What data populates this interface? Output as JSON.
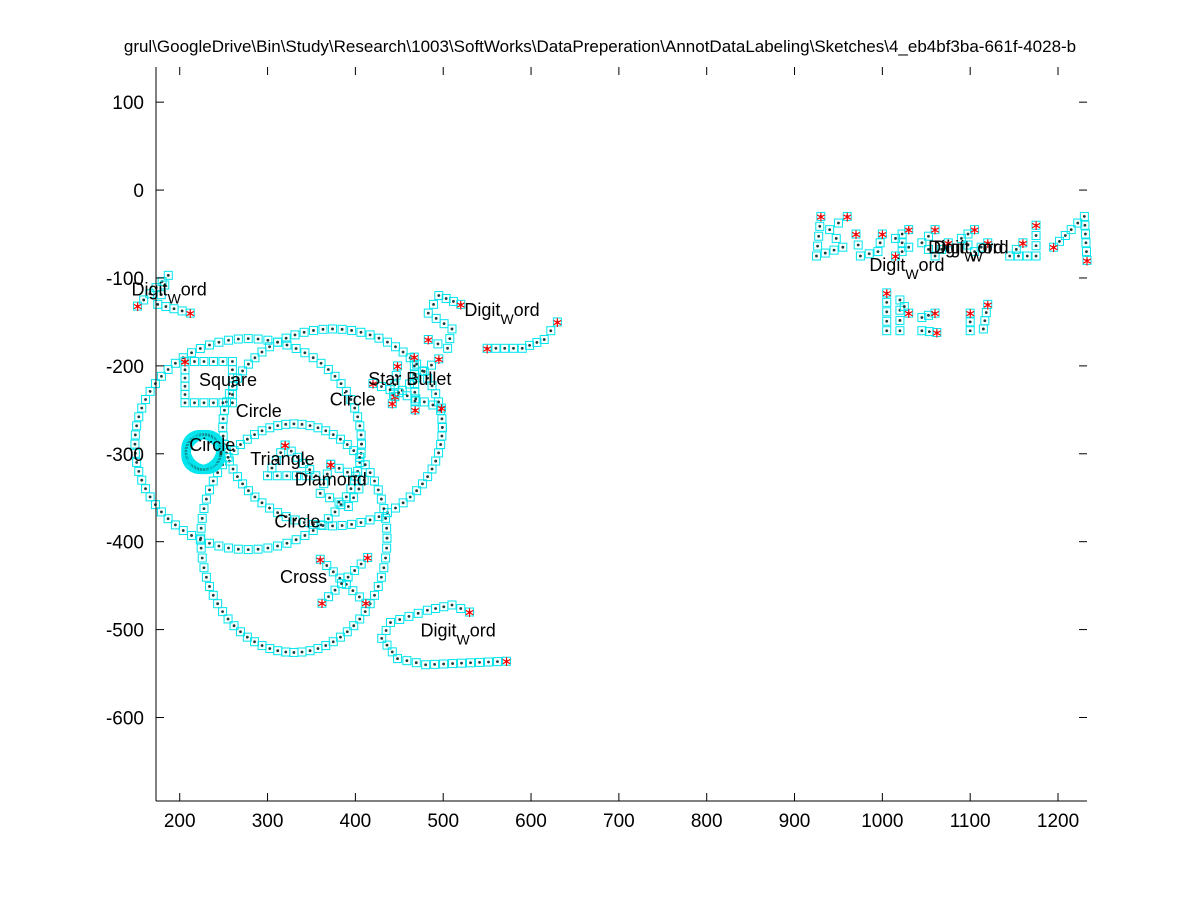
{
  "chart_data": {
    "type": "scatter",
    "title": "grul\\GoogleDrive\\Bin\\Study\\Research\\1003\\SoftWorks\\DataPreperation\\AnnotDataLabeling\\Sketches\\4_eb4bf3ba-661f-4028-b",
    "xlabel": "",
    "ylabel": "",
    "xlim": [
      173,
      1233
    ],
    "ylim": [
      -695,
      140
    ],
    "grid": false,
    "xticks": [
      200,
      300,
      400,
      500,
      600,
      700,
      800,
      900,
      1000,
      1100,
      1200
    ],
    "yticks": [
      100,
      0,
      -100,
      -200,
      -300,
      -400,
      -500,
      -600
    ],
    "xtick_labels": [
      "200",
      "300",
      "400",
      "500",
      "600",
      "700",
      "800",
      "900",
      "1000",
      "1100",
      "1200"
    ],
    "ytick_labels": [
      "100",
      "0",
      "-100",
      "-200",
      "-300",
      "-400",
      "-500",
      "-600"
    ],
    "colors": {
      "stroke": "#00e5ee",
      "point": "#1a3c3c",
      "endpoint": "#ff0000"
    },
    "annotations": [
      {
        "text": "Digit",
        "sub": "word",
        "x": 188,
        "y": -120
      },
      {
        "text": "Digit",
        "sub": "word",
        "x": 567,
        "y": -143
      },
      {
        "text": "Digit",
        "sub": "word",
        "x": 517,
        "y": -508
      },
      {
        "text": "Square",
        "x": 255,
        "y": -223
      },
      {
        "text": "Circle",
        "x": 290,
        "y": -258
      },
      {
        "text": "Circle",
        "x": 237,
        "y": -297
      },
      {
        "text": "Star Bullet",
        "x": 462,
        "y": -222
      },
      {
        "text": "Circle",
        "x": 397,
        "y": -245
      },
      {
        "text": "Triangle",
        "x": 317,
        "y": -313
      },
      {
        "text": "Diamond",
        "x": 372,
        "y": -336
      },
      {
        "text": "Circle",
        "x": 334,
        "y": -384
      },
      {
        "text": "Cross",
        "x": 341,
        "y": -447
      },
      {
        "text": "Digit",
        "sub": "word",
        "x": 1095,
        "y": -72
      },
      {
        "text": "Digit",
        "sub": "word",
        "x": 1101,
        "y": -72
      },
      {
        "text": "Digit",
        "sub": "word",
        "x": 1028,
        "y": -92
      }
    ],
    "series": [
      {
        "kind": "circle",
        "cx": 278,
        "cy": -289,
        "rx": 129,
        "ry": 120
      },
      {
        "kind": "circle",
        "cx": 374,
        "cy": -270,
        "rx": 125,
        "ry": 112
      },
      {
        "kind": "circle",
        "cx": 330,
        "cy": -396,
        "rx": 106,
        "ry": 130
      },
      {
        "kind": "poly",
        "points": [
          [
            206,
            -195
          ],
          [
            260,
            -195
          ],
          [
            260,
            -242
          ],
          [
            206,
            -242
          ],
          [
            206,
            -195
          ]
        ]
      },
      {
        "kind": "circle",
        "cx": 227,
        "cy": -298,
        "rx": 20,
        "ry": 20
      },
      {
        "kind": "poly",
        "points": [
          [
            320,
            -290
          ],
          [
            355,
            -325
          ],
          [
            300,
            -325
          ],
          [
            320,
            -290
          ]
        ]
      },
      {
        "kind": "poly",
        "points": [
          [
            372,
            -312
          ],
          [
            360,
            -345
          ],
          [
            392,
            -360
          ],
          [
            410,
            -330
          ],
          [
            372,
            -312
          ]
        ]
      },
      {
        "kind": "poly",
        "points": [
          [
            360,
            -420
          ],
          [
            412,
            -470
          ]
        ]
      },
      {
        "kind": "poly",
        "points": [
          [
            414,
            -418
          ],
          [
            362,
            -470
          ]
        ]
      },
      {
        "kind": "poly",
        "points": [
          [
            448,
            -200
          ],
          [
            442,
            -243
          ]
        ]
      },
      {
        "kind": "poly",
        "points": [
          [
            495,
            -192
          ],
          [
            445,
            -235
          ]
        ]
      },
      {
        "kind": "poly",
        "points": [
          [
            420,
            -220
          ],
          [
            498,
            -248
          ]
        ]
      },
      {
        "kind": "poly",
        "points": [
          [
            467,
            -190
          ],
          [
            468,
            -250
          ]
        ]
      },
      {
        "kind": "poly",
        "points": [
          [
            152,
            -132
          ],
          [
            187,
            -97
          ],
          [
            175,
            -130
          ],
          [
            212,
            -140
          ]
        ]
      },
      {
        "kind": "poly",
        "points": [
          [
            530,
            -480
          ],
          [
            510,
            -472
          ],
          [
            482,
            -478
          ],
          [
            440,
            -492
          ],
          [
            430,
            -510
          ],
          [
            448,
            -533
          ],
          [
            480,
            -540
          ],
          [
            572,
            -536
          ]
        ]
      },
      {
        "kind": "poly",
        "points": [
          [
            520,
            -130
          ],
          [
            495,
            -120
          ],
          [
            483,
            -140
          ],
          [
            510,
            -158
          ],
          [
            505,
            -180
          ],
          [
            483,
            -170
          ]
        ]
      },
      {
        "kind": "poly",
        "points": [
          [
            550,
            -180
          ],
          [
            590,
            -180
          ],
          [
            615,
            -170
          ],
          [
            630,
            -150
          ]
        ]
      },
      {
        "kind": "poly",
        "points": [
          [
            930,
            -30
          ],
          [
            925,
            -75
          ],
          [
            955,
            -65
          ],
          [
            940,
            -45
          ],
          [
            960,
            -30
          ]
        ]
      },
      {
        "kind": "poly",
        "points": [
          [
            970,
            -50
          ],
          [
            975,
            -75
          ],
          [
            995,
            -70
          ],
          [
            1000,
            -50
          ]
        ]
      },
      {
        "kind": "poly",
        "points": [
          [
            1030,
            -45
          ],
          [
            1015,
            -55
          ],
          [
            1030,
            -65
          ],
          [
            1015,
            -75
          ]
        ]
      },
      {
        "kind": "poly",
        "points": [
          [
            1060,
            -45
          ],
          [
            1045,
            -60
          ],
          [
            1060,
            -75
          ],
          [
            1075,
            -60
          ]
        ]
      },
      {
        "kind": "poly",
        "points": [
          [
            1105,
            -45
          ],
          [
            1090,
            -55
          ],
          [
            1105,
            -70
          ],
          [
            1120,
            -60
          ]
        ]
      },
      {
        "kind": "poly",
        "points": [
          [
            1160,
            -60
          ],
          [
            1145,
            -75
          ],
          [
            1175,
            -75
          ],
          [
            1175,
            -40
          ]
        ]
      },
      {
        "kind": "poly",
        "points": [
          [
            1195,
            -65
          ],
          [
            1215,
            -45
          ],
          [
            1230,
            -30
          ],
          [
            1233,
            -80
          ]
        ]
      },
      {
        "kind": "poly",
        "points": [
          [
            1005,
            -117
          ],
          [
            1005,
            -160
          ],
          [
            1020,
            -160
          ],
          [
            1020,
            -125
          ],
          [
            1030,
            -140
          ]
        ]
      },
      {
        "kind": "poly",
        "points": [
          [
            1060,
            -140
          ],
          [
            1045,
            -145
          ],
          [
            1045,
            -160
          ],
          [
            1062,
            -162
          ]
        ]
      },
      {
        "kind": "poly",
        "points": [
          [
            1100,
            -140
          ],
          [
            1100,
            -160
          ],
          [
            1115,
            -158
          ],
          [
            1120,
            -130
          ]
        ]
      }
    ]
  }
}
